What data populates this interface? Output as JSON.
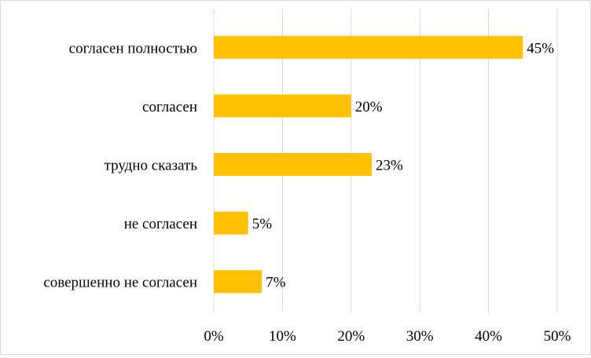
{
  "chart_data": {
    "type": "bar",
    "orientation": "horizontal",
    "categories": [
      "согласен полностью",
      "согласен",
      "трудно сказать",
      "не согласен",
      "совершенно не согласен"
    ],
    "values": [
      45,
      20,
      23,
      5,
      7
    ],
    "value_labels": [
      "45%",
      "20%",
      "23%",
      "5%",
      "7%"
    ],
    "x_ticks": [
      "0%",
      "10%",
      "20%",
      "30%",
      "40%",
      "50%"
    ],
    "xlim": [
      0,
      50
    ],
    "unit": "%",
    "grid": "vertical",
    "legend": "none",
    "title": "",
    "xlabel": "",
    "ylabel": "",
    "bar_color": "#FFC000",
    "grid_color": "#D9D9D9"
  }
}
